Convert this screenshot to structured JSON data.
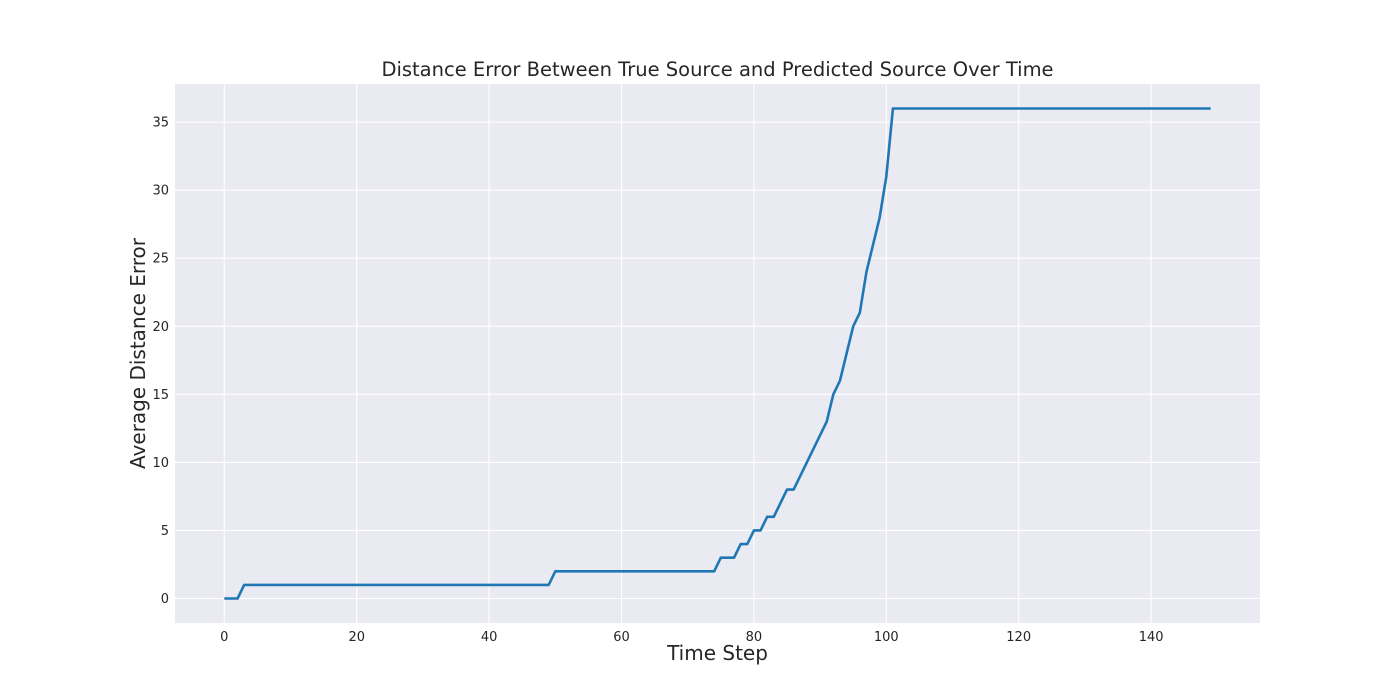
{
  "chart_data": {
    "type": "line",
    "title": "Distance Error Between True Source and Predicted Source Over Time",
    "xlabel": "Time Step",
    "ylabel": "Average Distance Error",
    "xlim": [
      -7.45,
      156.45
    ],
    "ylim": [
      -1.8,
      37.8
    ],
    "xticks": [
      0,
      20,
      40,
      60,
      80,
      100,
      120,
      140
    ],
    "yticks": [
      0,
      5,
      10,
      15,
      20,
      25,
      30,
      35
    ],
    "grid": true,
    "legend": "none",
    "series": [
      {
        "color": "#1f77b4",
        "x": [
          0,
          2,
          3,
          49,
          50,
          74,
          75,
          77,
          78,
          79,
          80,
          81,
          82,
          83,
          85,
          86,
          91,
          92,
          93,
          95,
          96,
          97,
          99,
          100,
          101,
          149
        ],
        "y": [
          0,
          0,
          1,
          1,
          2,
          2,
          3,
          3,
          4,
          4,
          5,
          5,
          6,
          6,
          8,
          8,
          13,
          15,
          16,
          20,
          21,
          24,
          28,
          31,
          36,
          36
        ]
      }
    ]
  }
}
